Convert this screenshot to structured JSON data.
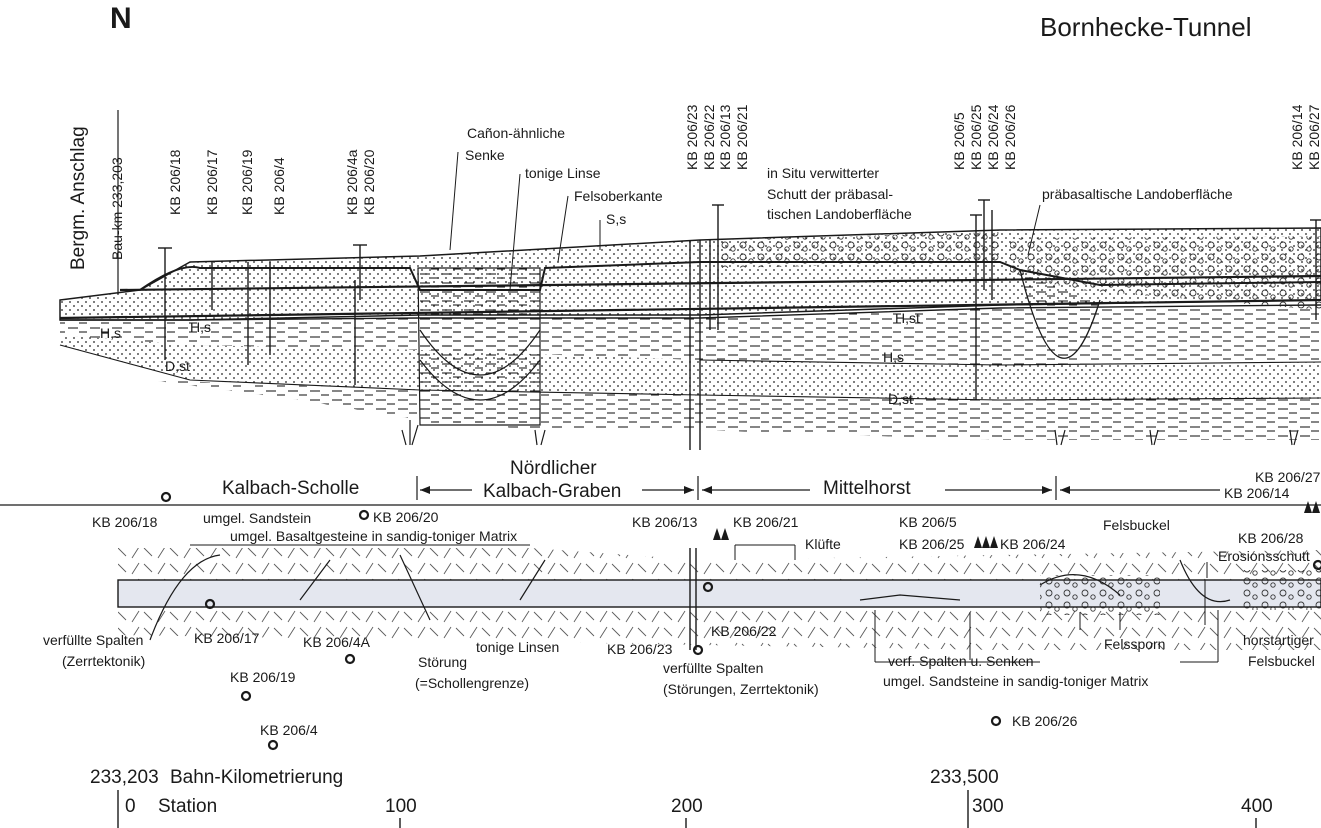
{
  "north": "N",
  "title": "Bornhecke-Tunnel",
  "section": {
    "anschlag": "Bergm. Anschlag",
    "baukm": "Bau-km 233,203",
    "boreholes": [
      {
        "label": "KB 206/18"
      },
      {
        "label": "KB 206/17"
      },
      {
        "label": "KB 206/19"
      },
      {
        "label": "KB 206/4"
      },
      {
        "label": "KB 206/4a"
      },
      {
        "label": "KB 206/20"
      },
      {
        "label": "KB 206/23"
      },
      {
        "label": "KB 206/22"
      },
      {
        "label": "KB 206/13"
      },
      {
        "label": "KB 206/21"
      },
      {
        "label": "KB 206/5"
      },
      {
        "label": "KB 206/25"
      },
      {
        "label": "KB 206/24"
      },
      {
        "label": "KB 206/26"
      },
      {
        "label": "KB 206/14"
      },
      {
        "label": "KB 206/27"
      }
    ],
    "annotations": {
      "canon1": "Cañon-ähnliche",
      "canon2": "Senke",
      "tonige_linse": "tonige Linse",
      "felsoberkante": "Felsoberkante",
      "ss": "S,s",
      "insitu1": "in Situ verwitterter",
      "insitu2": "Schutt der präbasal-",
      "insitu3": "tischen Landoberfläche",
      "praebasalt": "präbasaltische Landoberfläche"
    },
    "layers": {
      "hs_left": "H,s",
      "hs_mid": "H,s",
      "dst_left": "D,st",
      "hst": "H,st",
      "hs_right": "H,s",
      "dst_right": "D,st"
    }
  },
  "zones": {
    "kalbach": "Kalbach-Scholle",
    "graben1": "Nördlicher",
    "graben2": "Kalbach-Graben",
    "mittelhorst": "Mittelhorst"
  },
  "plan": {
    "bh": {
      "b18": "KB 206/18",
      "b20": "KB 206/20",
      "b13": "KB 206/13",
      "b21": "KB 206/21",
      "b5": "KB 206/5",
      "b25": "KB 206/25",
      "b24": "KB 206/24",
      "b27": "KB 206/27",
      "b14": "KB 206/14",
      "b28": "KB 206/28",
      "b17": "KB 206/17",
      "b4A": "KB 206/4A",
      "b19": "KB 206/19",
      "b4": "KB 206/4",
      "b23": "KB 206/23",
      "b22": "KB 206/22",
      "b26": "KB 206/26"
    },
    "notes": {
      "sandstein": "umgel. Sandstein",
      "basalt": "umgel. Basaltgesteine in sandig-toniger Matrix",
      "kluefte": "Klüfte",
      "felsbuckel": "Felsbuckel",
      "erosion": "Erosionsschutt",
      "sp1a": "verfüllte Spalten",
      "sp1b": "(Zerrtektonik)",
      "stoer1": "Störung",
      "stoer2": "(=Schollengrenze)",
      "tonige_linsen": "tonige Linsen",
      "sp2a": "verfüllte Spalten",
      "sp2b": "(Störungen, Zerrtektonik)",
      "verf1": "verf. Spalten u. Senken",
      "verf2": "umgel. Sandsteine in sandig-toniger Matrix",
      "felssporn": "Felssporn",
      "horst1": "horstartiger",
      "horst2": "Felsbuckel"
    }
  },
  "scale": {
    "km_left": "233,203",
    "bahn": "Bahn-Kilometrierung",
    "km_mid": "233,500",
    "station": "Station",
    "ticks": [
      "0",
      "100",
      "200",
      "300",
      "400"
    ]
  }
}
